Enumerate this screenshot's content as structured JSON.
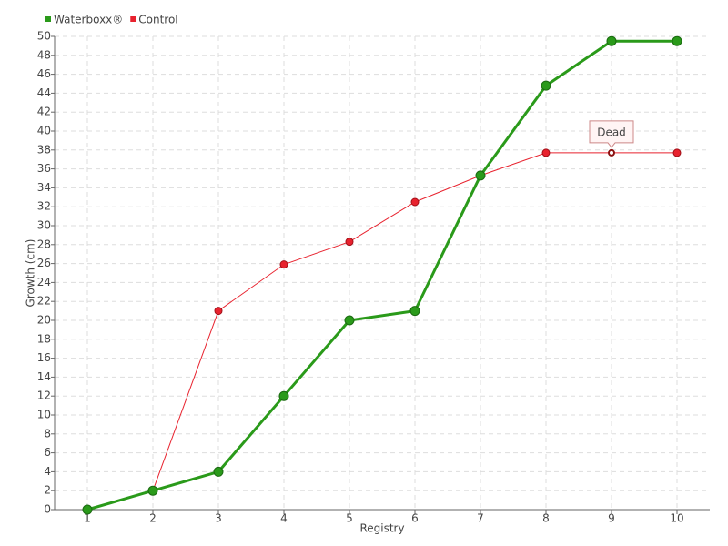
{
  "chart_data": {
    "type": "line",
    "x_label": "Registry",
    "y_label": "Growth (cm)",
    "x": [
      1,
      2,
      3,
      4,
      5,
      6,
      7,
      8,
      9,
      10
    ],
    "series": [
      {
        "name": "Waterboxx®",
        "color": "#2a9a1a",
        "values": [
          0,
          2,
          4,
          12,
          20,
          21,
          35.3,
          44.8,
          49.5,
          49.5
        ]
      },
      {
        "name": "Control",
        "color": "#e8222e",
        "values": [
          0,
          2,
          21,
          25.9,
          28.3,
          32.5,
          35.3,
          37.7,
          37.7,
          37.7
        ]
      }
    ],
    "xlim": [
      0.5,
      10.5
    ],
    "xticks": [
      1,
      2,
      3,
      4,
      5,
      6,
      7,
      8,
      9,
      10
    ],
    "ylim": [
      0,
      50
    ],
    "yticks": [
      0,
      2,
      4,
      6,
      8,
      10,
      12,
      14,
      16,
      18,
      20,
      22,
      24,
      26,
      28,
      30,
      32,
      34,
      36,
      38,
      40,
      42,
      44,
      46,
      48,
      50
    ],
    "grid": true,
    "legend": "top-left",
    "annotations": [
      {
        "text": "Dead",
        "series": 1,
        "x": 9
      }
    ]
  }
}
